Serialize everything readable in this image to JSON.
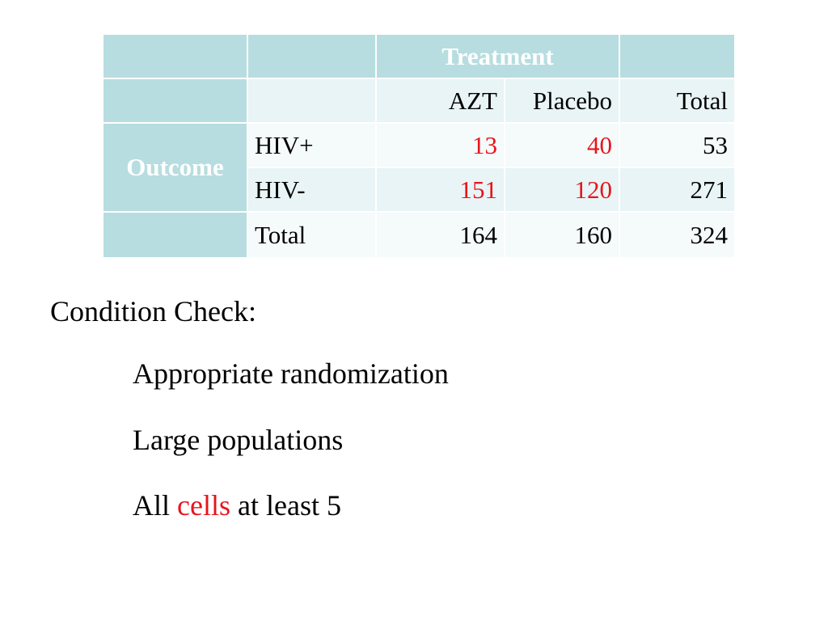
{
  "colors": {
    "header_band": "#b7dde0",
    "row_light": "#e8f4f5",
    "row_white": "#f5fafb",
    "accent_red": "#e8141b",
    "text": "#000000"
  },
  "table": {
    "header_title": "Treatment",
    "outcome_label": "Outcome",
    "columns": [
      "AZT",
      "Placebo",
      "Total"
    ],
    "rows": [
      {
        "label": "HIV+",
        "values": [
          "13",
          "40",
          "53"
        ]
      },
      {
        "label": "HIV-",
        "values": [
          "151",
          "120",
          "271"
        ]
      },
      {
        "label": "Total",
        "values": [
          "164",
          "160",
          "324"
        ]
      }
    ]
  },
  "conditions": {
    "heading": "Condition Check:",
    "items": [
      "Appropriate randomization",
      "Large populations"
    ],
    "last_item": {
      "before": "All",
      "highlight": "cells",
      "after": "at least 5"
    }
  }
}
